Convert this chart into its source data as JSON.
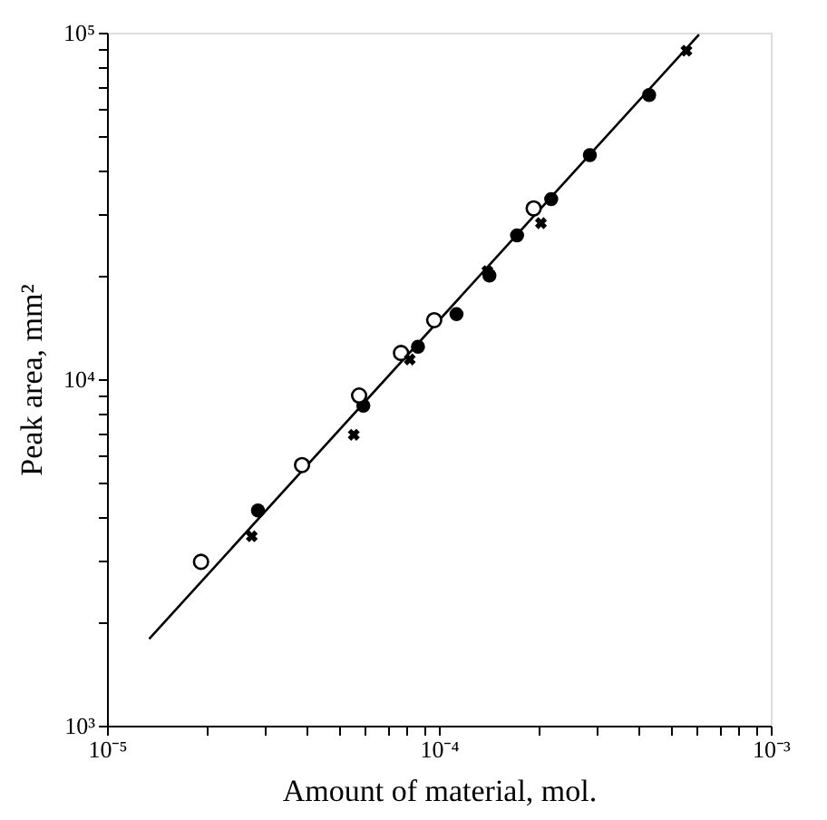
{
  "chart_data": {
    "type": "scatter",
    "xlabel": "Amount of material, mol.",
    "ylabel": "Peak area, mm²",
    "log": "xy",
    "grid": false,
    "xlim": [
      1e-05,
      0.001
    ],
    "ylim": [
      1000,
      100000
    ],
    "xticks": [
      {
        "value": 1e-05,
        "label": "10⁻⁵"
      },
      {
        "value": 2e-05,
        "label": null
      },
      {
        "value": 3e-05,
        "label": null
      },
      {
        "value": 4e-05,
        "label": null
      },
      {
        "value": 5e-05,
        "label": null
      },
      {
        "value": 6e-05,
        "label": null
      },
      {
        "value": 7e-05,
        "label": null
      },
      {
        "value": 8e-05,
        "label": null
      },
      {
        "value": 9e-05,
        "label": null
      },
      {
        "value": 0.0001,
        "label": "10⁻⁴"
      },
      {
        "value": 0.0002,
        "label": null
      },
      {
        "value": 0.0003,
        "label": null
      },
      {
        "value": 0.0004,
        "label": null
      },
      {
        "value": 0.0005,
        "label": null
      },
      {
        "value": 0.0006,
        "label": null
      },
      {
        "value": 0.0007,
        "label": null
      },
      {
        "value": 0.0008,
        "label": null
      },
      {
        "value": 0.0009,
        "label": null
      },
      {
        "value": 0.001,
        "label": "10⁻³"
      }
    ],
    "yticks": [
      {
        "value": 1000,
        "label": "10³"
      },
      {
        "value": 2000,
        "label": null
      },
      {
        "value": 3000,
        "label": null
      },
      {
        "value": 4000,
        "label": null
      },
      {
        "value": 5000,
        "label": null
      },
      {
        "value": 6000,
        "label": null
      },
      {
        "value": 7000,
        "label": null
      },
      {
        "value": 8000,
        "label": null
      },
      {
        "value": 9000,
        "label": null
      },
      {
        "value": 10000,
        "label": "10⁴"
      },
      {
        "value": 20000,
        "label": null
      },
      {
        "value": 30000,
        "label": null
      },
      {
        "value": 40000,
        "label": null
      },
      {
        "value": 50000,
        "label": null
      },
      {
        "value": 60000,
        "label": null
      },
      {
        "value": 70000,
        "label": null
      },
      {
        "value": 80000,
        "label": null
      },
      {
        "value": 90000,
        "label": null
      },
      {
        "value": 100000,
        "label": "10⁵"
      }
    ],
    "series": [
      {
        "type": "line",
        "color": "#000000",
        "marker": "none",
        "line_style": "solid",
        "x": [
          1.34e-05,
          0.000608
        ],
        "values": [
          1780,
          98800
        ]
      },
      {
        "color": "#000000",
        "marker": "circle",
        "x": [
          2.85e-05,
          5.92e-05,
          8.65e-05,
          0.000113,
          0.000142,
          0.000172,
          0.000218,
          0.000285,
          0.00043
        ],
        "values": [
          4180,
          8380,
          12400,
          15400,
          19900,
          26000,
          33100,
          44300,
          66100
        ]
      },
      {
        "color": "#000000",
        "marker": "circle",
        "x": [
          1.92e-05,
          3.87e-05,
          5.75e-05,
          7.69e-05,
          9.68e-05,
          0.000193
        ],
        "values": [
          2970,
          5650,
          8970,
          11900,
          14800,
          31100
        ]
      },
      {
        "color": "#000000",
        "marker": "cross",
        "x": [
          2.73e-05,
          5.54e-05,
          8.17e-05,
          0.00014,
          0.000203,
          0.000557
        ],
        "values": [
          3520,
          6910,
          11400,
          20500,
          28200,
          88700
        ]
      }
    ]
  }
}
